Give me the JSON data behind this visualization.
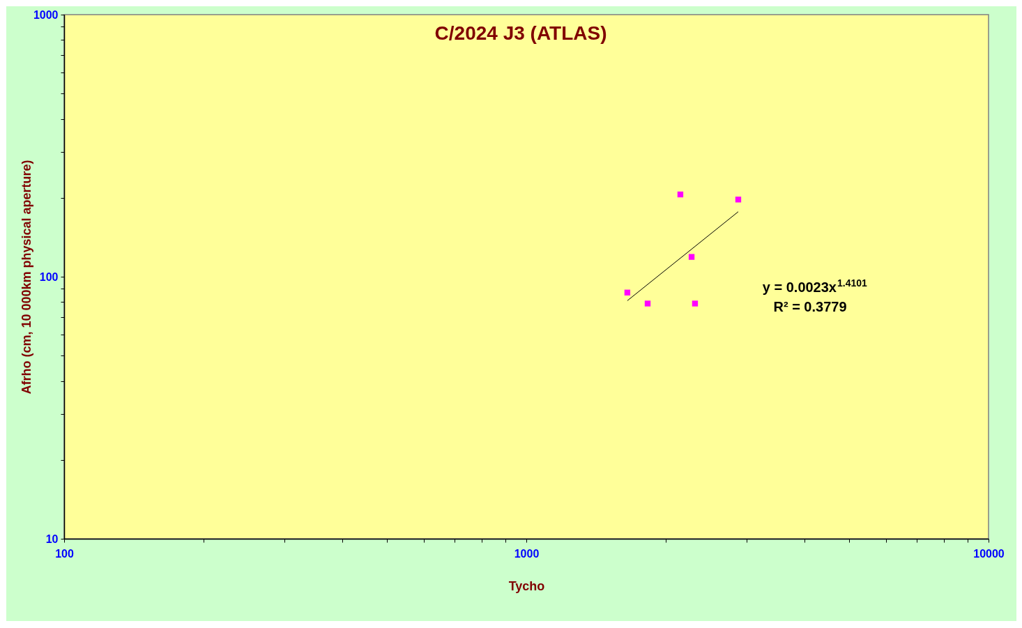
{
  "chart_data": {
    "type": "scatter",
    "title": "C/2024 J3 (ATLAS)",
    "xlabel": "Tycho",
    "ylabel": "Afrho (cm, 10 000km physical  aperture)",
    "log": "xy",
    "grid": false,
    "xlim": [
      100,
      10000
    ],
    "ylim": [
      10,
      1000
    ],
    "xticks": [
      100,
      {
        "value": 200,
        "label": null
      },
      {
        "value": 300,
        "label": null
      },
      {
        "value": 400,
        "label": null
      },
      {
        "value": 500,
        "label": null
      },
      {
        "value": 600,
        "label": null
      },
      {
        "value": 700,
        "label": null
      },
      {
        "value": 800,
        "label": null
      },
      {
        "value": 900,
        "label": null
      },
      1000,
      {
        "value": 2000,
        "label": null
      },
      {
        "value": 3000,
        "label": null
      },
      {
        "value": 4000,
        "label": null
      },
      {
        "value": 5000,
        "label": null
      },
      {
        "value": 6000,
        "label": null
      },
      {
        "value": 7000,
        "label": null
      },
      {
        "value": 8000,
        "label": null
      },
      {
        "value": 9000,
        "label": null
      },
      10000
    ],
    "yticks": [
      10,
      {
        "value": 20,
        "label": null
      },
      {
        "value": 30,
        "label": null
      },
      {
        "value": 40,
        "label": null
      },
      {
        "value": 50,
        "label": null
      },
      {
        "value": 60,
        "label": null
      },
      {
        "value": 70,
        "label": null
      },
      {
        "value": 80,
        "label": null
      },
      {
        "value": 90,
        "label": null
      },
      100,
      {
        "value": 200,
        "label": null
      },
      {
        "value": 300,
        "label": null
      },
      {
        "value": 400,
        "label": null
      },
      {
        "value": 500,
        "label": null
      },
      {
        "value": 600,
        "label": null
      },
      {
        "value": 700,
        "label": null
      },
      {
        "value": 800,
        "label": null
      },
      {
        "value": 900,
        "label": null
      },
      1000
    ],
    "series": [
      {
        "type": "scatter",
        "marker": "square",
        "color": "#ff00ff",
        "x": [
          1654,
          1830,
          2154,
          2278,
          2317,
          2874
        ],
        "values": [
          87,
          79,
          206,
          119,
          79,
          197
        ]
      },
      {
        "type": "line",
        "marker": "none",
        "color": "#000000",
        "x": [
          1654,
          2874
        ],
        "values": [
          81,
          177
        ]
      }
    ],
    "annotations": [
      "y = 0.0023x$^{1.4101}$",
      "R² = 0.3779"
    ]
  }
}
